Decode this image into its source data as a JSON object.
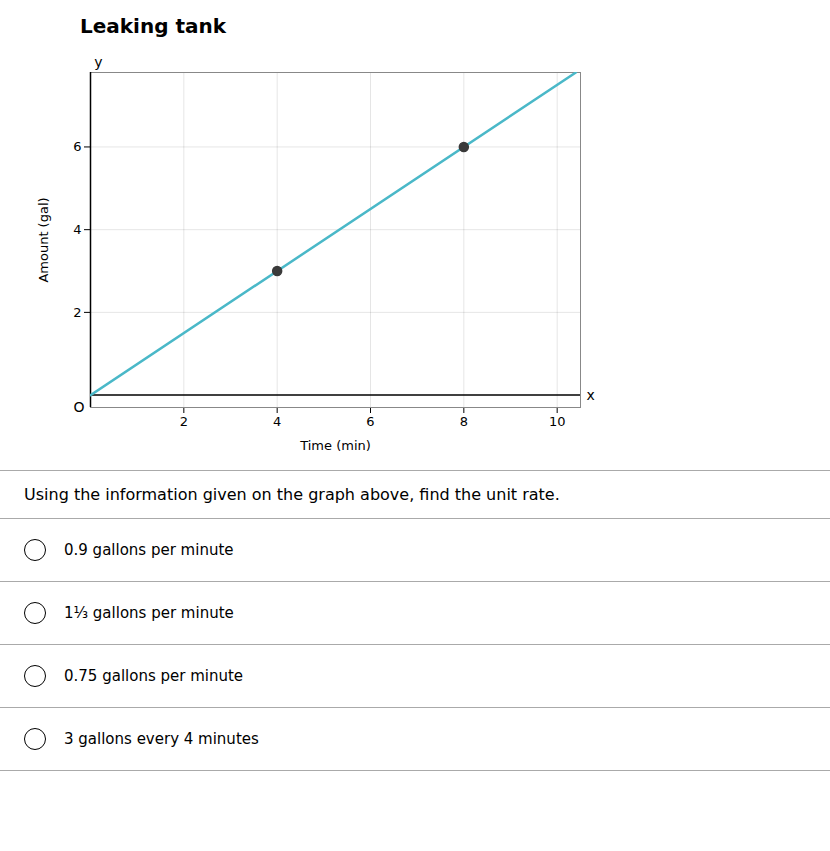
{
  "chart_data": {
    "type": "line",
    "title": "Leaking tank",
    "xlabel": "Time (min)",
    "ylabel": "Amount (gal)",
    "xlim": [
      0,
      10.5
    ],
    "ylim": [
      -0.3,
      7.8
    ],
    "xticks": [
      2,
      4,
      6,
      8,
      10
    ],
    "yticks": [
      2,
      4,
      6
    ],
    "grid": true,
    "series": [
      {
        "type": "line",
        "color": "#4ab8c8",
        "x": [
          0,
          10.4
        ],
        "values": [
          0,
          7.8
        ]
      },
      {
        "type": "scatter",
        "color": "#3a3a3a",
        "marker": "circle",
        "x": [
          4,
          8
        ],
        "values": [
          3.0,
          6.0
        ]
      }
    ],
    "annotations": [
      "x",
      "y",
      "O"
    ],
    "question": "Using the information given on the graph above, find the unit rate.",
    "choices": [
      "0.9 gallons per minute",
      "1⅓ gallons per minute",
      "0.75 gallons per minute",
      "3 gallons every 4 minutes"
    ]
  }
}
